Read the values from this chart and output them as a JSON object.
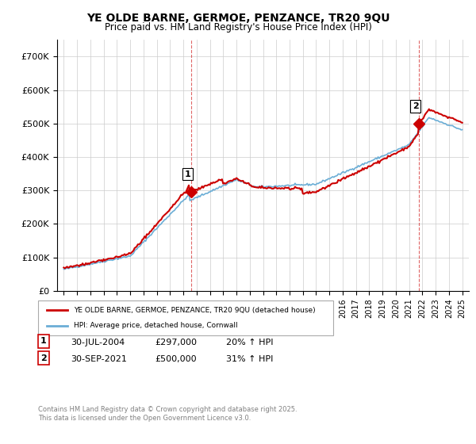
{
  "title": "YE OLDE BARNE, GERMOE, PENZANCE, TR20 9QU",
  "subtitle": "Price paid vs. HM Land Registry's House Price Index (HPI)",
  "ylim": [
    0,
    750000
  ],
  "yticks": [
    0,
    100000,
    200000,
    300000,
    400000,
    500000,
    600000,
    700000
  ],
  "ytick_labels": [
    "£0",
    "£100K",
    "£200K",
    "£300K",
    "£400K",
    "£500K",
    "£600K",
    "£700K"
  ],
  "line1_color": "#cc0000",
  "line2_color": "#6baed6",
  "sale1_date": 2004.58,
  "sale1_price": 297000,
  "sale1_label": "1",
  "sale2_date": 2021.75,
  "sale2_price": 500000,
  "sale2_label": "2",
  "grid_color": "#cccccc",
  "background_color": "#ffffff",
  "legend_line1": "YE OLDE BARNE, GERMOE, PENZANCE, TR20 9QU (detached house)",
  "legend_line2": "HPI: Average price, detached house, Cornwall",
  "table_row1": [
    "1",
    "30-JUL-2004",
    "£297,000",
    "20% ↑ HPI"
  ],
  "table_row2": [
    "2",
    "30-SEP-2021",
    "£500,000",
    "31% ↑ HPI"
  ],
  "footnote": "Contains HM Land Registry data © Crown copyright and database right 2025.\nThis data is licensed under the Open Government Licence v3.0.",
  "vline1_date": 2004.58,
  "vline2_date": 2021.75,
  "xmin": 1994.5,
  "xmax": 2025.5
}
